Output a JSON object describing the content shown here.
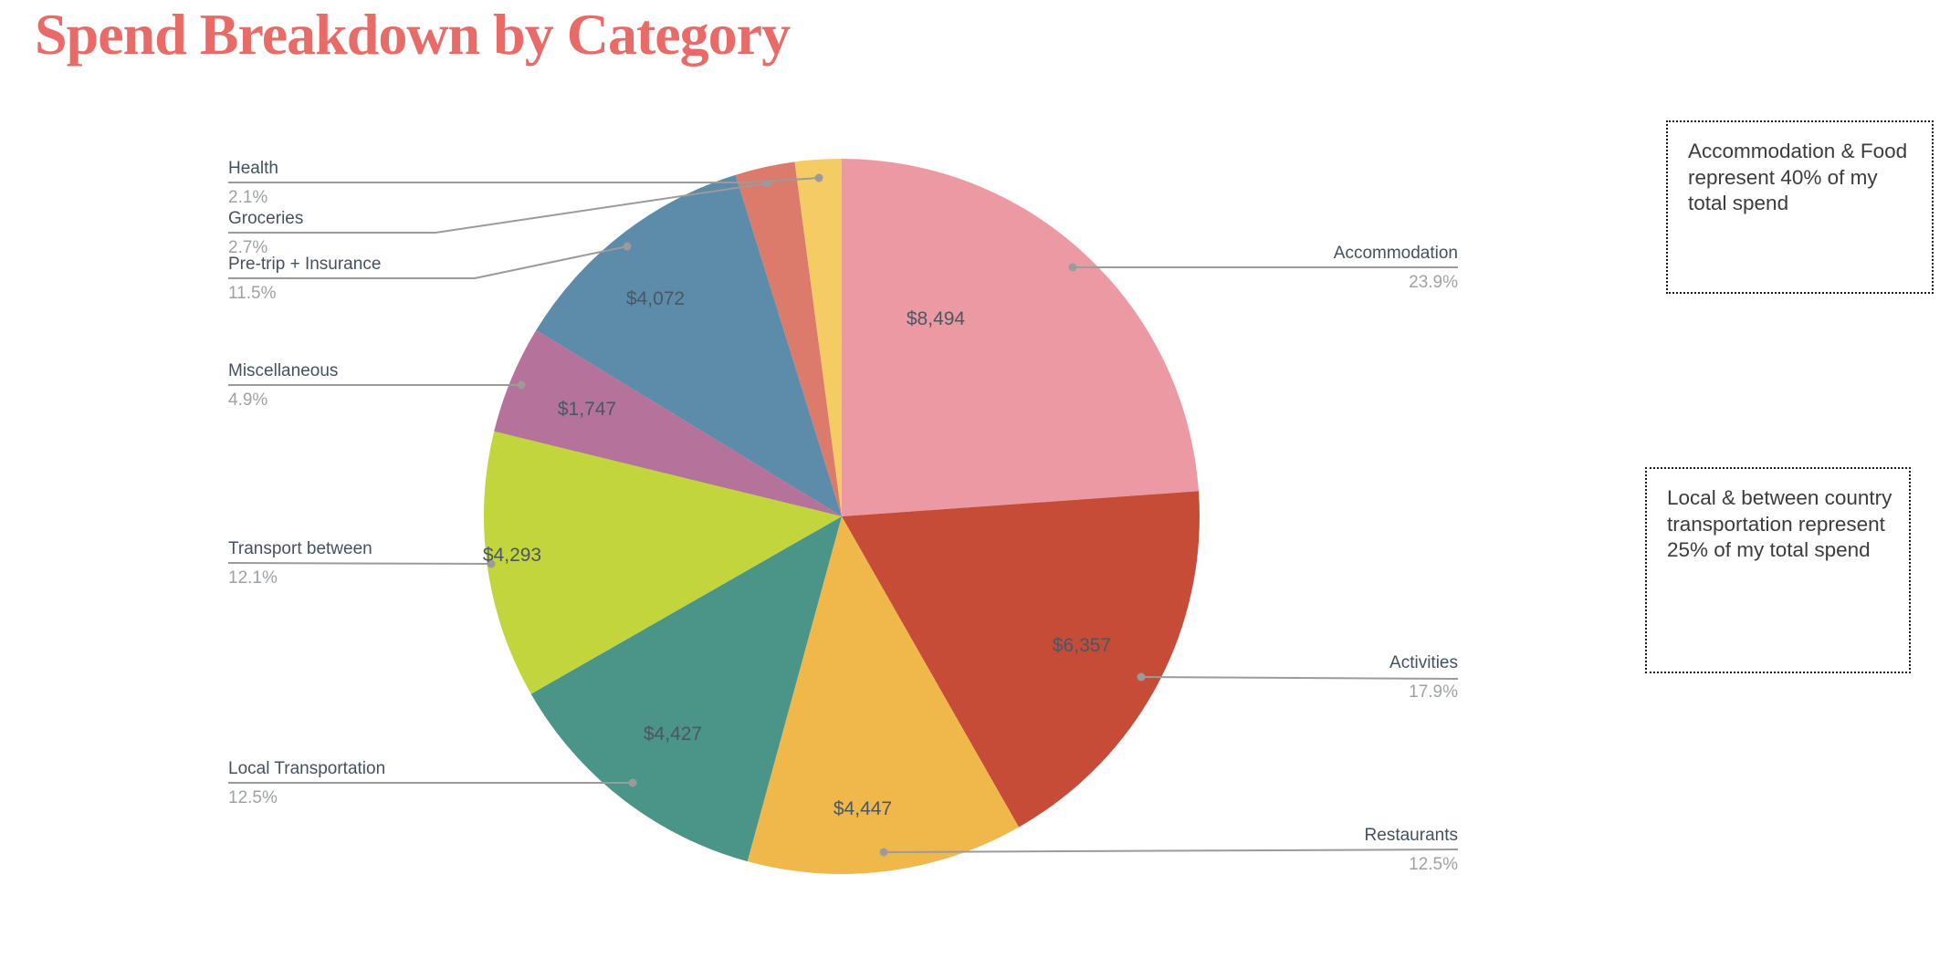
{
  "page": {
    "background": "#ffffff"
  },
  "title": {
    "text": "Spend Breakdown by Category",
    "color": "#E96B68"
  },
  "chart_data": {
    "type": "pie",
    "title": "Spend Breakdown by Category",
    "direction": "clockwise",
    "start_angle_deg": 0,
    "legend_position": "outside-callouts",
    "leader_color": "#9b9b9b",
    "label_name_color": "#44525F",
    "label_pct_color": "#9FA2A5",
    "value_label_color": "#4A5763",
    "slices": [
      {
        "id": "accommodation",
        "label": "Accommodation",
        "pct": 23.9,
        "pct_label": "23.9%",
        "value": 8494,
        "value_label": "$8,494",
        "color": "#EB9AA4"
      },
      {
        "id": "activities",
        "label": "Activities",
        "pct": 17.9,
        "pct_label": "17.9%",
        "value": 6357,
        "value_label": "$6,357",
        "color": "#C64C38"
      },
      {
        "id": "restaurants",
        "label": "Restaurants",
        "pct": 12.5,
        "pct_label": "12.5%",
        "value": 4447,
        "value_label": "$4,447",
        "color": "#F0B84B"
      },
      {
        "id": "local_transportation",
        "label": "Local Transportation",
        "pct": 12.5,
        "pct_label": "12.5%",
        "value": 4427,
        "value_label": "$4,427",
        "color": "#4B9488"
      },
      {
        "id": "transport_between",
        "label": "Transport between",
        "pct": 12.1,
        "pct_label": "12.1%",
        "value": 4293,
        "value_label": "$4,293",
        "color": "#C3D53D"
      },
      {
        "id": "miscellaneous",
        "label": "Miscellaneous",
        "pct": 4.9,
        "pct_label": "4.9%",
        "value": 1747,
        "value_label": "$1,747",
        "color": "#B5739C"
      },
      {
        "id": "pretrip_insurance",
        "label": "Pre-trip + Insurance",
        "pct": 11.5,
        "pct_label": "11.5%",
        "value": 4072,
        "value_label": "$4,072",
        "color": "#5C8CAA"
      },
      {
        "id": "groceries",
        "label": "Groceries",
        "pct": 2.7,
        "pct_label": "2.7%",
        "value": null,
        "value_label": null,
        "color": "#DC7A6B"
      },
      {
        "id": "health",
        "label": "Health",
        "pct": 2.1,
        "pct_label": "2.1%",
        "value": null,
        "value_label": null,
        "color": "#F5CC63"
      }
    ]
  },
  "annotations": [
    {
      "text": "Accommodation & Food represent 40% of my total spend"
    },
    {
      "text": "Local & between country transportation represent 25% of my total spend"
    }
  ]
}
